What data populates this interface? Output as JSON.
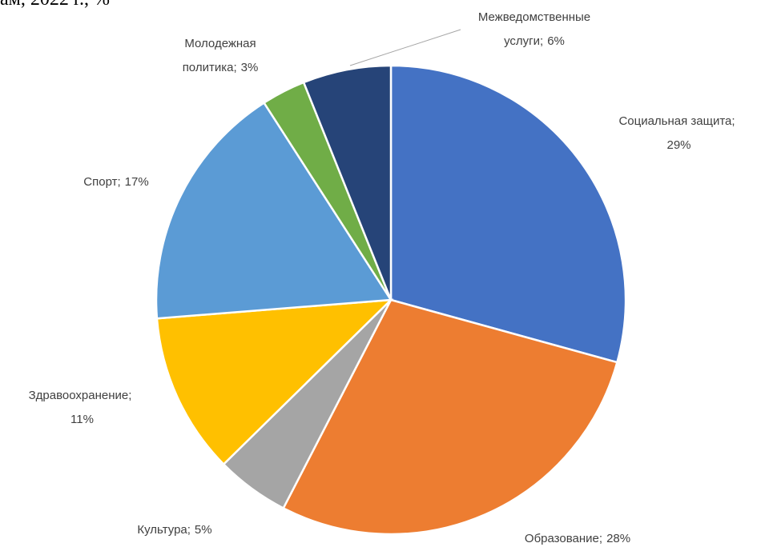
{
  "chart_data": {
    "type": "pie",
    "title": "ам, 2022 г., %",
    "categories": [
      "Социальная защита;",
      "Образование;",
      "Культура;",
      "Здравоохранение;",
      "Спорт;",
      "Молодежная политика;",
      "Межведомственные услуги;"
    ],
    "values": [
      29,
      28,
      5,
      11,
      17,
      3,
      6
    ],
    "value_labels": [
      "29%",
      "28%",
      "5%",
      "11%",
      "17%",
      "3%",
      "6%"
    ],
    "colors": [
      "#4472c4",
      "#ed7d31",
      "#a5a5a5",
      "#ffc000",
      "#5b9bd5",
      "#70ad47",
      "#264478"
    ]
  }
}
